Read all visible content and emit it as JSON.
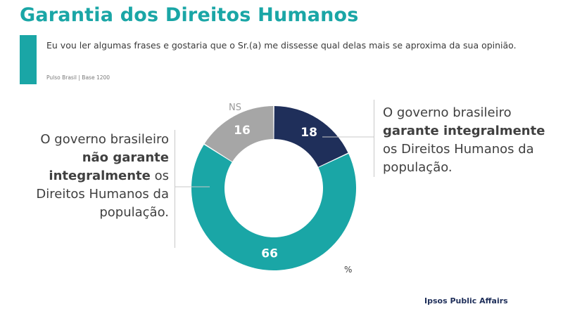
{
  "header": {
    "title": "Garantia dos Direitos Humanos",
    "question": "Eu vou ler algumas frases e gostaria que o Sr.(a) me dissesse qual delas mais se aproxima da sua opinião.",
    "source": "Pulso Brasil | Base 1200"
  },
  "colors": {
    "accent": "#1aa6a6",
    "garante": "#1f2f5a",
    "nao_garante": "#1aa6a6",
    "ns": "#a6a6a6"
  },
  "chart_data": {
    "type": "pie",
    "style": "donut",
    "unit_label": "%",
    "series": [
      {
        "name": "O governo brasileiro garante integralmente os Direitos Humanos da população.",
        "value": 18
      },
      {
        "name": "O governo brasileiro não garante integralmente os Direitos Humanos da população.",
        "value": 66
      },
      {
        "name": "NS",
        "value": 16
      }
    ]
  },
  "labels": {
    "ns": "NS",
    "left": {
      "p1": "O governo brasileiro ",
      "b1": "não garante integralmente",
      "p2": " os Direitos Humanos da população."
    },
    "right": {
      "p1": "O governo brasileiro ",
      "b1": "garante integralmente",
      "p2": " os Direitos Humanos da população."
    }
  },
  "footer": {
    "brand": "Ipsos Public Affairs"
  }
}
